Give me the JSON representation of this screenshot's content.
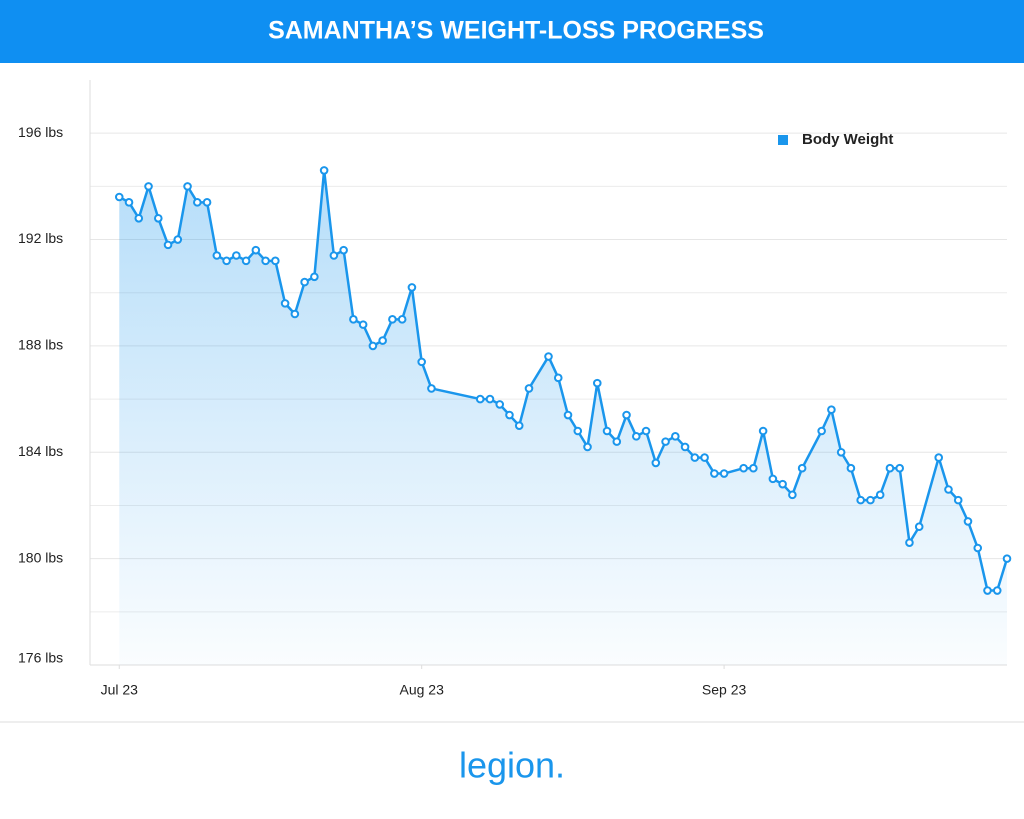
{
  "chart_data": {
    "type": "line",
    "title": "SAMANTHA’S WEIGHT-LOSS PROGRESS",
    "x": [
      0,
      1,
      2,
      3,
      4,
      5,
      6,
      7,
      8,
      9,
      10,
      11,
      12,
      13,
      14,
      15,
      16,
      17,
      18,
      19,
      20,
      21,
      22,
      23,
      24,
      25,
      26,
      27,
      28,
      29,
      30,
      31,
      32,
      37,
      38,
      39,
      40,
      41,
      42,
      44,
      45,
      46,
      47,
      48,
      49,
      50,
      51,
      52,
      53,
      54,
      55,
      56,
      57,
      58,
      59,
      60,
      61,
      62,
      64,
      65,
      66,
      67,
      68,
      69,
      70,
      72,
      73,
      74,
      75,
      76,
      77,
      78,
      79,
      80,
      81,
      82,
      84,
      85,
      86,
      87,
      88,
      89,
      90,
      91
    ],
    "series": [
      {
        "name": "Body Weight",
        "color": "#1a96ec",
        "values": [
          193.6,
          193.4,
          192.8,
          194.0,
          192.8,
          191.8,
          192.0,
          194.0,
          193.4,
          193.4,
          191.4,
          191.2,
          191.4,
          191.2,
          191.6,
          191.2,
          191.2,
          189.6,
          189.2,
          190.4,
          190.6,
          194.6,
          191.4,
          191.6,
          189.0,
          188.8,
          188.0,
          188.2,
          189.0,
          189.0,
          190.2,
          187.4,
          186.4,
          186.0,
          186.0,
          185.8,
          185.4,
          185.0,
          186.4,
          187.6,
          186.8,
          185.4,
          184.8,
          184.2,
          186.6,
          184.8,
          184.4,
          185.4,
          184.6,
          184.8,
          183.6,
          184.4,
          184.6,
          184.2,
          183.8,
          183.8,
          183.2,
          183.2,
          183.4,
          183.4,
          184.8,
          183.0,
          182.8,
          182.4,
          183.4,
          184.8,
          185.6,
          184.0,
          183.4,
          182.2,
          182.2,
          182.4,
          183.4,
          183.4,
          180.6,
          181.2,
          183.8,
          182.6,
          182.2,
          181.4,
          180.4,
          178.8,
          178.8,
          180.0
        ]
      }
    ],
    "xlim": [
      -3,
      91
    ],
    "xticks": [
      {
        "value": 0,
        "label": "Jul 23"
      },
      {
        "value": 31,
        "label": "Aug 23"
      },
      {
        "value": 62,
        "label": "Sep 23"
      }
    ],
    "ylim": [
      176,
      198
    ],
    "yticks": [
      {
        "value": 176,
        "label": "176 lbs"
      },
      {
        "value": 180,
        "label": "180 lbs"
      },
      {
        "value": 184,
        "label": "184 lbs"
      },
      {
        "value": 188,
        "label": "188 lbs"
      },
      {
        "value": 192,
        "label": "192 lbs"
      },
      {
        "value": 196,
        "label": "196 lbs"
      }
    ],
    "minor_yticks": [
      178,
      182,
      186,
      190,
      194
    ],
    "grid": true,
    "legend": "top-right",
    "area": true
  },
  "footer": {
    "logo": "legion."
  }
}
